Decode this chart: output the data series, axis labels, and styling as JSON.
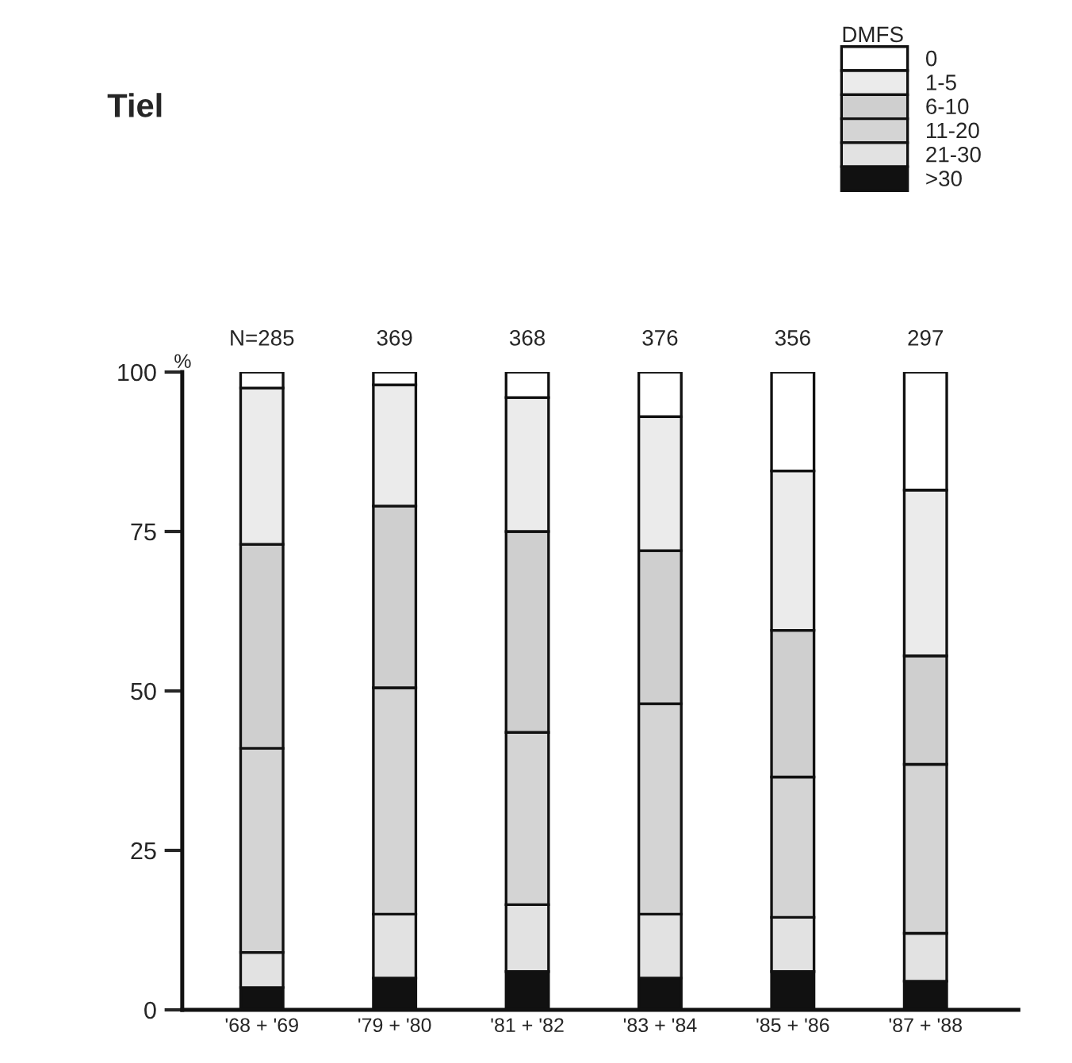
{
  "chart_data": {
    "type": "bar",
    "title": "Tiel",
    "ylabel": "%",
    "legend_title": "DMFS",
    "stacked": true,
    "categories": [
      "'68 + '69",
      "'79 + '80",
      "'81 + '82",
      "'83 + '84",
      "'85 + '86",
      "'87 + '88"
    ],
    "series": [
      {
        "name": ">30",
        "color": "#111111",
        "values": [
          3.5,
          5,
          6,
          5,
          6,
          4.5
        ]
      },
      {
        "name": "21-30",
        "color": "#e2e2e2",
        "values": [
          5.5,
          10,
          10.5,
          10,
          8.5,
          7.5
        ]
      },
      {
        "name": "11-20",
        "color": "#d4d4d4",
        "values": [
          32,
          35.5,
          27,
          33,
          22,
          26.5
        ]
      },
      {
        "name": "6-10",
        "color": "#cfcfcf",
        "values": [
          32,
          28.5,
          31.5,
          24,
          23,
          17
        ]
      },
      {
        "name": "1-5",
        "color": "#ebebeb",
        "values": [
          24.5,
          19,
          21,
          21,
          25,
          26
        ]
      },
      {
        "name": "0",
        "color": "#ffffff",
        "values": [
          2.5,
          2,
          4,
          7,
          15.5,
          18.5
        ]
      }
    ],
    "annotations": [
      {
        "text": "N=285",
        "x": "'68 + '69",
        "y": 100
      },
      {
        "text": "369",
        "x": "'79 + '80",
        "y": 100
      },
      {
        "text": "368",
        "x": "'81 + '82",
        "y": 100
      },
      {
        "text": "376",
        "x": "'83 + '84",
        "y": 100
      },
      {
        "text": "356",
        "x": "'85 + '86",
        "y": 100
      },
      {
        "text": "297",
        "x": "'87 + '88",
        "y": 100
      }
    ],
    "ylim": [
      0,
      100
    ],
    "yticks": [
      0,
      25,
      50,
      75,
      100
    ],
    "grid": false,
    "legend": "top right"
  }
}
